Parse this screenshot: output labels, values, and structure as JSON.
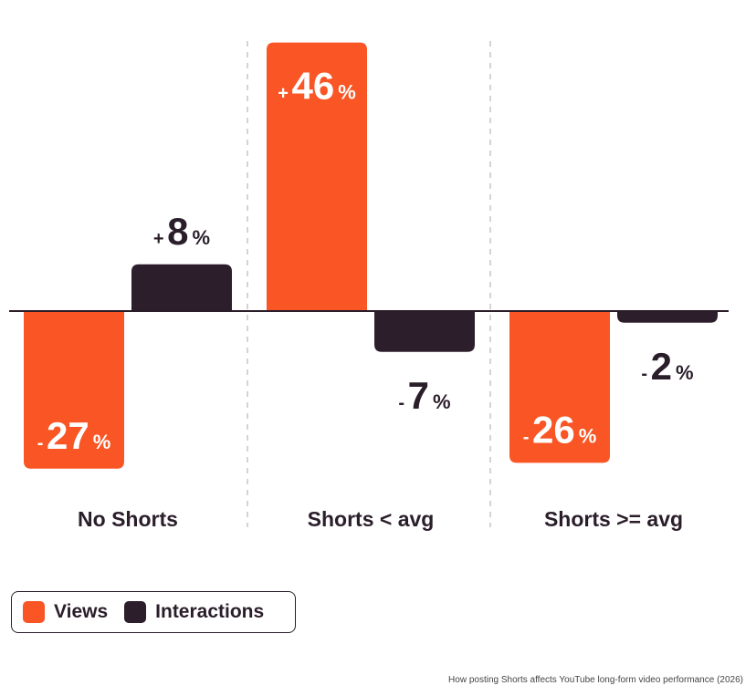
{
  "chart_data": {
    "type": "bar",
    "categories": [
      "No Shorts",
      "Shorts < avg",
      "Shorts >= avg"
    ],
    "series": [
      {
        "name": "Views",
        "color": "#f95525",
        "values": [
          -27,
          46,
          -26
        ]
      },
      {
        "name": "Interactions",
        "color": "#2d1e2c",
        "values": [
          8,
          -7,
          -2
        ]
      }
    ],
    "unit_label": "%",
    "baseline": 0,
    "legend_placement": "bottom-left",
    "grid": false
  },
  "caption": "How posting Shorts affects YouTube long-form video performance (2026)"
}
